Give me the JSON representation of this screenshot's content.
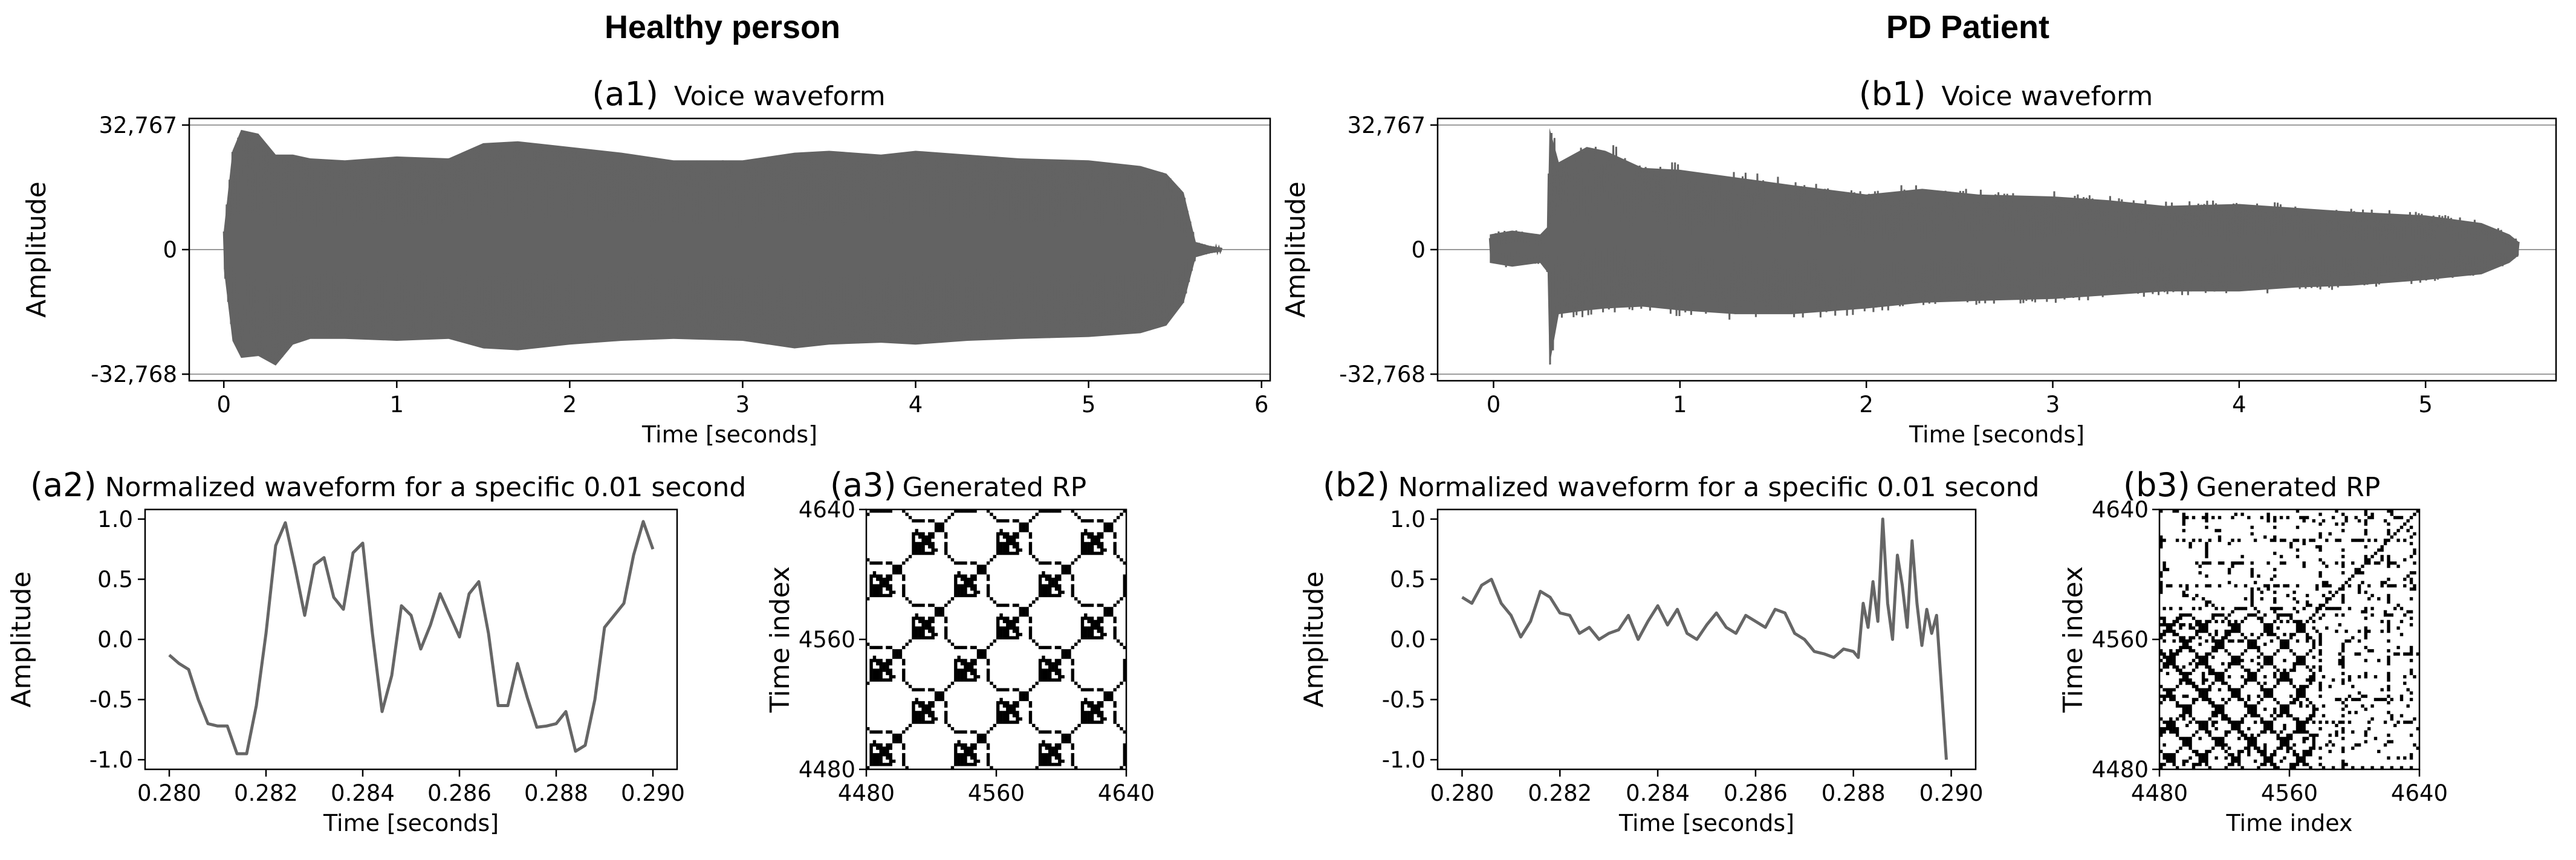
{
  "groups": {
    "healthy": "Healthy person",
    "pd": "PD Patient"
  },
  "chart_data": [
    {
      "id": "a1",
      "type": "area",
      "panel_tag": "(a1)",
      "title": "Voice waveform",
      "xlabel": "Time [seconds]",
      "ylabel": "Amplitude",
      "xlim": [
        -0.2,
        6.05
      ],
      "ylim": [
        -34500,
        34500
      ],
      "xticks": [
        "0",
        "1",
        "2",
        "3",
        "4",
        "5",
        "6"
      ],
      "xtick_values": [
        0,
        1,
        2,
        3,
        4,
        5,
        6
      ],
      "yticks": [
        "32,767",
        "0",
        "-32,768"
      ],
      "ytick_values": [
        32767,
        0,
        -32768
      ],
      "hlines": [
        32767,
        0,
        -32768
      ],
      "color": "#636363",
      "x": [
        0.0,
        0.05,
        0.1,
        0.2,
        0.3,
        0.4,
        0.5,
        0.7,
        1.0,
        1.3,
        1.5,
        1.7,
        2.0,
        2.3,
        2.6,
        3.0,
        3.3,
        3.5,
        3.8,
        4.0,
        4.3,
        4.6,
        5.0,
        5.3,
        5.45,
        5.55,
        5.62,
        5.7,
        5.77
      ],
      "upper": [
        5000,
        26000,
        31500,
        30500,
        25000,
        25000,
        24000,
        23500,
        24500,
        24000,
        28000,
        28500,
        27000,
        25500,
        23500,
        23500,
        25500,
        26000,
        25000,
        26000,
        25000,
        24000,
        23500,
        22000,
        20000,
        15000,
        2000,
        1000,
        500
      ],
      "lower": [
        -5000,
        -24000,
        -28500,
        -28000,
        -30500,
        -25000,
        -23500,
        -23500,
        -24000,
        -23500,
        -26000,
        -26500,
        -25000,
        -24000,
        -23500,
        -24000,
        -26000,
        -25000,
        -24500,
        -25000,
        -24000,
        -23500,
        -23000,
        -22000,
        -20000,
        -14000,
        -2000,
        -1000,
        -500
      ]
    },
    {
      "id": "b1",
      "type": "area",
      "panel_tag": "(b1)",
      "title": "Voice waveform",
      "xlabel": "Time [seconds]",
      "ylabel": "Amplitude",
      "xlim": [
        -0.3,
        5.7
      ],
      "ylim": [
        -34500,
        34500
      ],
      "xticks": [
        "0",
        "1",
        "2",
        "3",
        "4",
        "5"
      ],
      "xtick_values": [
        0,
        1,
        2,
        3,
        4,
        5
      ],
      "yticks": [
        "32,767",
        "0",
        "-32,768"
      ],
      "ytick_values": [
        32767,
        0,
        -32768
      ],
      "hlines": [
        32767,
        0,
        -32768
      ],
      "color": "#636363",
      "x": [
        -0.02,
        0.1,
        0.25,
        0.29,
        0.3,
        0.35,
        0.5,
        0.6,
        0.8,
        1.0,
        1.3,
        1.6,
        2.0,
        2.3,
        2.6,
        3.0,
        3.3,
        3.6,
        4.0,
        4.3,
        4.6,
        5.0,
        5.3,
        5.45,
        5.5
      ],
      "upper": [
        4000,
        5000,
        4000,
        6000,
        32000,
        23000,
        27000,
        26000,
        21500,
        21000,
        19000,
        17000,
        14500,
        16000,
        14500,
        14000,
        13000,
        11500,
        12000,
        11000,
        10000,
        9000,
        7000,
        4000,
        2000
      ],
      "lower": [
        -3500,
        -4500,
        -3500,
        -6000,
        -30500,
        -17000,
        -16000,
        -15500,
        -15000,
        -16000,
        -17000,
        -17000,
        -15500,
        -14000,
        -13500,
        -13000,
        -12000,
        -11000,
        -11000,
        -10000,
        -9500,
        -8000,
        -6500,
        -3500,
        -1500
      ]
    },
    {
      "id": "a2",
      "type": "line",
      "panel_tag": "(a2)",
      "title": "Normalized waveform for a specific 0.01 second",
      "xlabel": "Time [seconds]",
      "ylabel": "Amplitude",
      "xlim": [
        0.2795,
        0.2905
      ],
      "ylim": [
        -1.08,
        1.08
      ],
      "xticks": [
        "0.280",
        "0.282",
        "0.284",
        "0.286",
        "0.288",
        "0.290"
      ],
      "xtick_values": [
        0.28,
        0.282,
        0.284,
        0.286,
        0.288,
        0.29
      ],
      "yticks": [
        "1.0",
        "0.5",
        "0.0",
        "-0.5",
        "-1.0"
      ],
      "ytick_values": [
        1.0,
        0.5,
        0.0,
        -0.5,
        -1.0
      ],
      "color": "#666666",
      "x": [
        0.28,
        0.2802,
        0.2804,
        0.2806,
        0.2808,
        0.281,
        0.2812,
        0.2814,
        0.2816,
        0.2818,
        0.282,
        0.2822,
        0.2824,
        0.2826,
        0.2828,
        0.283,
        0.2832,
        0.2834,
        0.2836,
        0.2838,
        0.284,
        0.2842,
        0.2844,
        0.2846,
        0.2848,
        0.285,
        0.2852,
        0.2854,
        0.2856,
        0.2858,
        0.286,
        0.2862,
        0.2864,
        0.2866,
        0.2868,
        0.287,
        0.2872,
        0.2874,
        0.2876,
        0.2878,
        0.288,
        0.2882,
        0.2884,
        0.2886,
        0.2888,
        0.289,
        0.2892,
        0.2894,
        0.2896,
        0.2898,
        0.29
      ],
      "y": [
        -0.13,
        -0.2,
        -0.25,
        -0.5,
        -0.7,
        -0.72,
        -0.72,
        -0.95,
        -0.95,
        -0.55,
        0.05,
        0.78,
        0.97,
        0.6,
        0.2,
        0.62,
        0.68,
        0.35,
        0.25,
        0.72,
        0.8,
        0.05,
        -0.6,
        -0.3,
        0.28,
        0.2,
        -0.08,
        0.12,
        0.38,
        0.2,
        0.02,
        0.38,
        0.48,
        0.05,
        -0.55,
        -0.55,
        -0.2,
        -0.48,
        -0.73,
        -0.72,
        -0.7,
        -0.6,
        -0.93,
        -0.88,
        -0.5,
        0.1,
        0.2,
        0.3,
        0.7,
        0.98,
        0.75
      ]
    },
    {
      "id": "b2",
      "type": "line",
      "panel_tag": "(b2)",
      "title": "Normalized waveform for a specific 0.01 second",
      "xlabel": "Time [seconds]",
      "ylabel": "Amplitude",
      "xlim": [
        0.2795,
        0.2905
      ],
      "ylim": [
        -1.08,
        1.08
      ],
      "xticks": [
        "0.280",
        "0.282",
        "0.284",
        "0.286",
        "0.288",
        "0.290"
      ],
      "xtick_values": [
        0.28,
        0.282,
        0.284,
        0.286,
        0.288,
        0.29
      ],
      "yticks": [
        "1.0",
        "0.5",
        "0.0",
        "-0.5",
        "-1.0"
      ],
      "ytick_values": [
        1.0,
        0.5,
        0.0,
        -0.5,
        -1.0
      ],
      "color": "#666666",
      "x": [
        0.28,
        0.2802,
        0.2804,
        0.2806,
        0.2808,
        0.281,
        0.2812,
        0.2814,
        0.2816,
        0.2818,
        0.282,
        0.2822,
        0.2824,
        0.2826,
        0.2828,
        0.283,
        0.2832,
        0.2834,
        0.2836,
        0.2838,
        0.284,
        0.2842,
        0.2844,
        0.2846,
        0.2848,
        0.285,
        0.2852,
        0.2854,
        0.2856,
        0.2858,
        0.286,
        0.2862,
        0.2864,
        0.2866,
        0.2868,
        0.287,
        0.2872,
        0.2874,
        0.2876,
        0.2878,
        0.288,
        0.2881,
        0.2882,
        0.2883,
        0.2884,
        0.2885,
        0.2886,
        0.2887,
        0.2888,
        0.2889,
        0.289,
        0.2891,
        0.2892,
        0.2893,
        0.2894,
        0.2895,
        0.2896,
        0.2897,
        0.2898,
        0.2899
      ],
      "y": [
        0.35,
        0.3,
        0.45,
        0.5,
        0.3,
        0.2,
        0.02,
        0.15,
        0.4,
        0.35,
        0.22,
        0.2,
        0.05,
        0.1,
        0.0,
        0.05,
        0.08,
        0.2,
        0.0,
        0.15,
        0.28,
        0.12,
        0.25,
        0.05,
        0.0,
        0.12,
        0.22,
        0.1,
        0.05,
        0.2,
        0.15,
        0.1,
        0.25,
        0.22,
        0.05,
        0.0,
        -0.1,
        -0.12,
        -0.15,
        -0.08,
        -0.1,
        -0.15,
        0.3,
        0.1,
        0.48,
        0.15,
        1.0,
        0.3,
        0.0,
        0.7,
        0.45,
        0.1,
        0.82,
        0.3,
        -0.05,
        0.25,
        0.05,
        0.2,
        -0.4,
        -1.0
      ]
    },
    {
      "id": "a3",
      "type": "heatmap",
      "panel_tag": "(a3)",
      "title": "Generated RP",
      "xlabel": "",
      "ylabel": "Time index",
      "xlim": [
        4480,
        4640
      ],
      "ylim": [
        4480,
        4640
      ],
      "xticks": [
        "4480",
        "4560",
        "4640"
      ],
      "yticks": [
        "4640",
        "4560",
        "4480"
      ],
      "tick_values": [
        4480,
        4560,
        4640
      ],
      "pattern": "periodic",
      "color": "#000000"
    },
    {
      "id": "b3",
      "type": "heatmap",
      "panel_tag": "(b3)",
      "title": "Generated RP",
      "xlabel": "Time index",
      "ylabel": "Time index",
      "xlim": [
        4480,
        4640
      ],
      "ylim": [
        4480,
        4640
      ],
      "xticks": [
        "4480",
        "4560",
        "4640"
      ],
      "yticks": [
        "4640",
        "4560",
        "4480"
      ],
      "tick_values": [
        4480,
        4560,
        4640
      ],
      "pattern": "irregular",
      "color": "#000000"
    }
  ]
}
